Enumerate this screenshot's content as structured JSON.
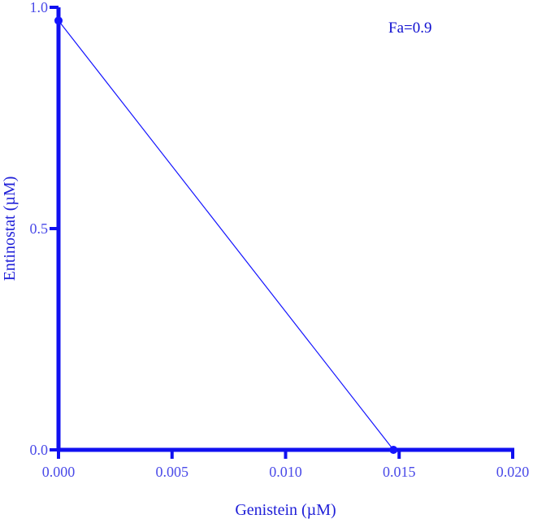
{
  "chart_data": {
    "type": "line",
    "title": "",
    "xlabel": "Genistein (µM)",
    "ylabel": "Entinostat (µM)",
    "xlim": [
      0.0,
      0.02
    ],
    "ylim": [
      0.0,
      1.0
    ],
    "x_ticks": [
      "0.000",
      "0.005",
      "0.010",
      "0.015",
      "0.020"
    ],
    "y_ticks": [
      "0.0",
      "0.5",
      "1.0"
    ],
    "annotation": "Fa=0.9",
    "grid": false,
    "series": [
      {
        "x": [
          0.0,
          0.01475
        ],
        "y": [
          0.97,
          0.0
        ]
      }
    ],
    "colors": {
      "axis": "#1010f0",
      "series": "#1414ff",
      "tick_text": "#4a4ae8",
      "title_text": "#2020d8",
      "annotation_text": "#1010d0"
    }
  }
}
